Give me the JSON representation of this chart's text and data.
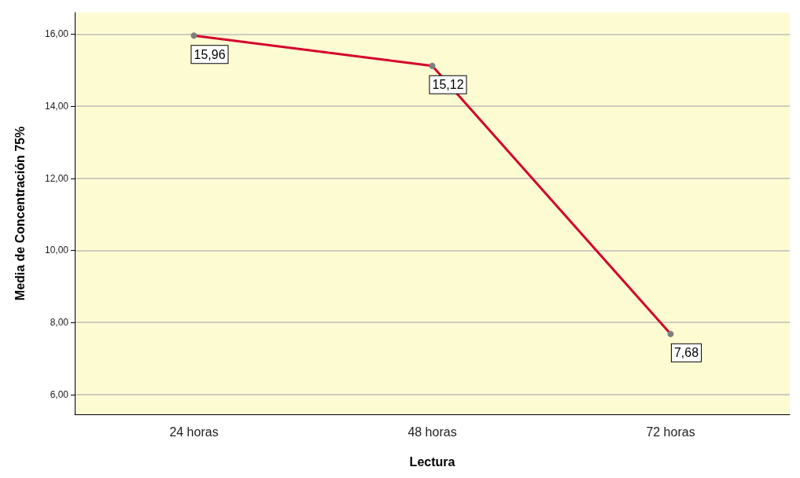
{
  "chart_data": {
    "type": "line",
    "xlabel": "Lectura",
    "ylabel": "Media de Concentración 75%",
    "categories": [
      "24 horas",
      "48 horas",
      "72 horas"
    ],
    "series": [
      {
        "color": "#d5002a",
        "values": [
          15.96,
          15.12,
          7.68
        ],
        "value_labels": [
          "15,96",
          "15,12",
          "7,68"
        ]
      }
    ],
    "ylim": [
      5.45,
      16.6
    ],
    "yticks": [
      {
        "value": 6,
        "label": "6,00"
      },
      {
        "value": 8,
        "label": "8,00"
      },
      {
        "value": 10,
        "label": "10,00"
      },
      {
        "value": 12,
        "label": "12,00"
      },
      {
        "value": 14,
        "label": "14,00"
      },
      {
        "value": 16,
        "label": "16,00"
      }
    ],
    "grid": "y",
    "marker": "circle",
    "line_style": "solid"
  }
}
